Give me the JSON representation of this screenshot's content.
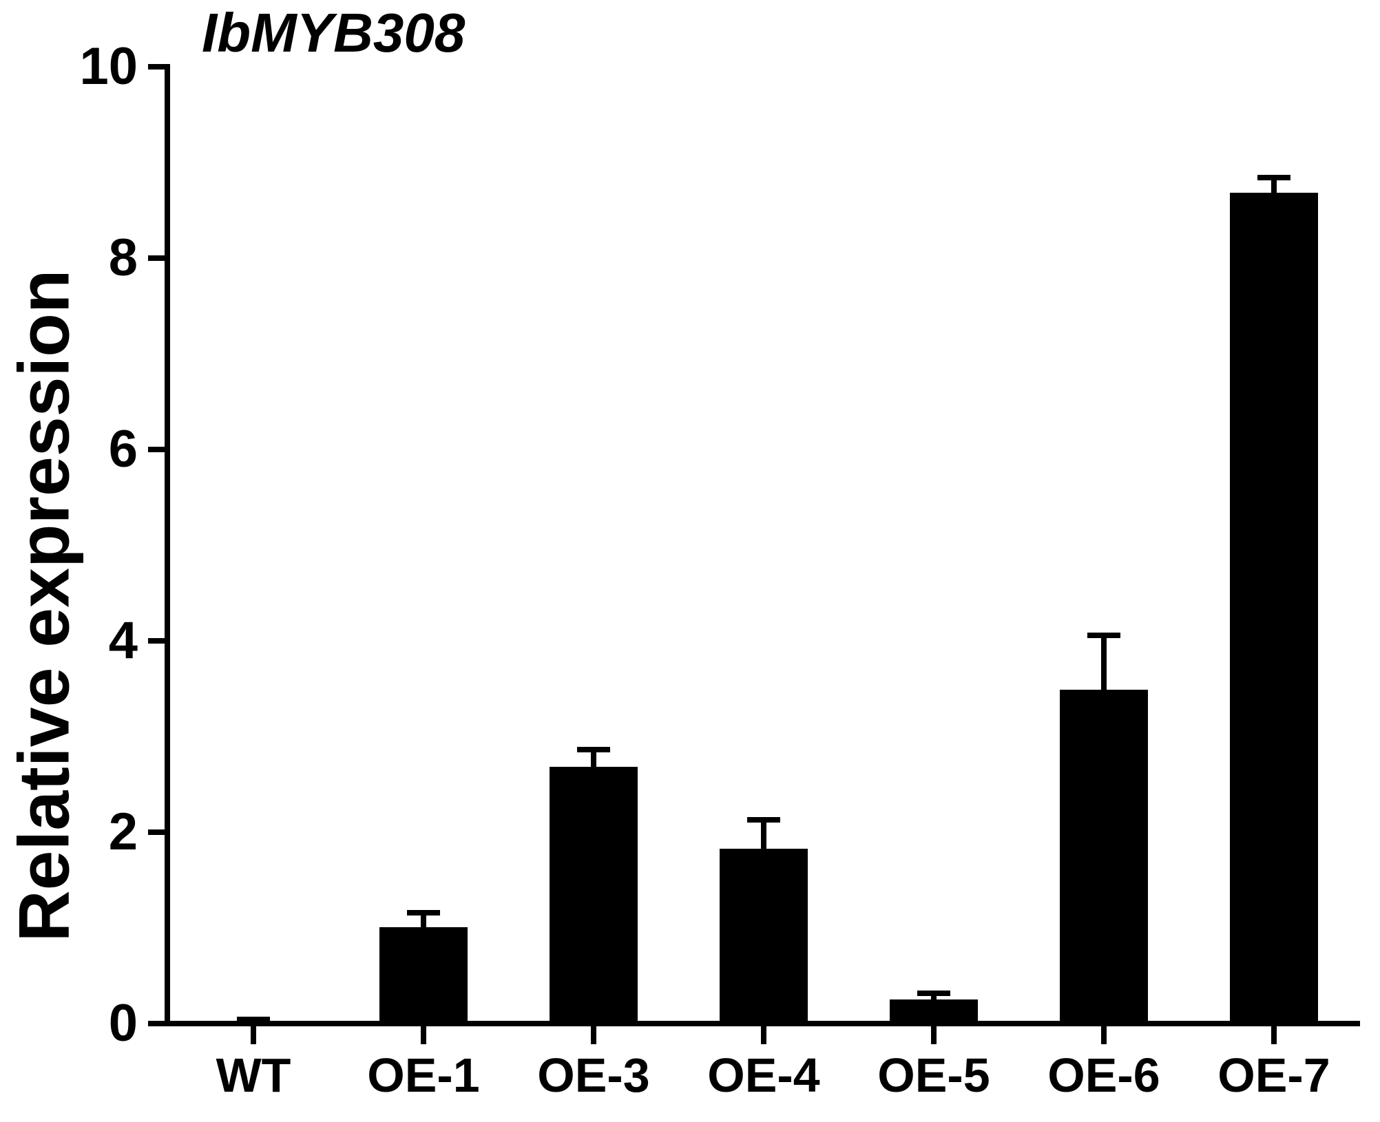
{
  "figure": {
    "background": "#ffffff",
    "foreground": "#000000"
  },
  "chart_data": {
    "type": "bar",
    "title": "IbMYB308",
    "title_style": "bold italic",
    "xlabel": "",
    "ylabel": "Relative expression",
    "categories": [
      "WT",
      "OE-1",
      "OE-3",
      "OE-4",
      "OE-5",
      "OE-6",
      "OE-7"
    ],
    "values": [
      0.02,
      1.01,
      2.68,
      1.83,
      0.25,
      3.49,
      8.68
    ],
    "errors_upper": [
      0.02,
      0.15,
      0.18,
      0.3,
      0.07,
      0.57,
      0.16
    ],
    "error_bars": "upper-only",
    "bar_color": "#000000",
    "ylim": [
      0,
      10
    ],
    "yticks": [
      0,
      2,
      4,
      6,
      8,
      10
    ],
    "grid": false,
    "legend": null
  }
}
